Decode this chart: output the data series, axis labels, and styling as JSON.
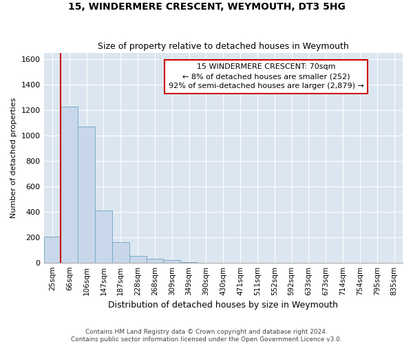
{
  "title1": "15, WINDERMERE CRESCENT, WEYMOUTH, DT3 5HG",
  "title2": "Size of property relative to detached houses in Weymouth",
  "xlabel": "Distribution of detached houses by size in Weymouth",
  "ylabel": "Number of detached properties",
  "categories": [
    "25sqm",
    "66sqm",
    "106sqm",
    "147sqm",
    "187sqm",
    "228sqm",
    "268sqm",
    "309sqm",
    "349sqm",
    "390sqm",
    "430sqm",
    "471sqm",
    "511sqm",
    "552sqm",
    "592sqm",
    "633sqm",
    "673sqm",
    "714sqm",
    "754sqm",
    "795sqm",
    "835sqm"
  ],
  "values": [
    205,
    1230,
    1070,
    410,
    160,
    55,
    30,
    20,
    5,
    0,
    0,
    0,
    0,
    0,
    0,
    0,
    0,
    0,
    0,
    0,
    0
  ],
  "bar_color": "#c8d8ea",
  "bar_edge_color": "#7aaac8",
  "highlight_line_color": "#cc0000",
  "annotation_line1": "15 WINDERMERE CRESCENT: 70sqm",
  "annotation_line2": "← 8% of detached houses are smaller (252)",
  "annotation_line3": "92% of semi-detached houses are larger (2,879) →",
  "annotation_box_facecolor": "#ffffff",
  "annotation_box_edgecolor": "#cc0000",
  "background_color": "#dce6f0",
  "ylim": [
    0,
    1650
  ],
  "yticks": [
    0,
    200,
    400,
    600,
    800,
    1000,
    1200,
    1400,
    1600
  ],
  "footer1": "Contains HM Land Registry data © Crown copyright and database right 2024.",
  "footer2": "Contains public sector information licensed under the Open Government Licence v3.0.",
  "title1_fontsize": 10,
  "title2_fontsize": 9,
  "ylabel_fontsize": 8,
  "xlabel_fontsize": 9,
  "ytick_fontsize": 8,
  "xtick_fontsize": 7.5,
  "annotation_fontsize": 8,
  "footer_fontsize": 6.5
}
